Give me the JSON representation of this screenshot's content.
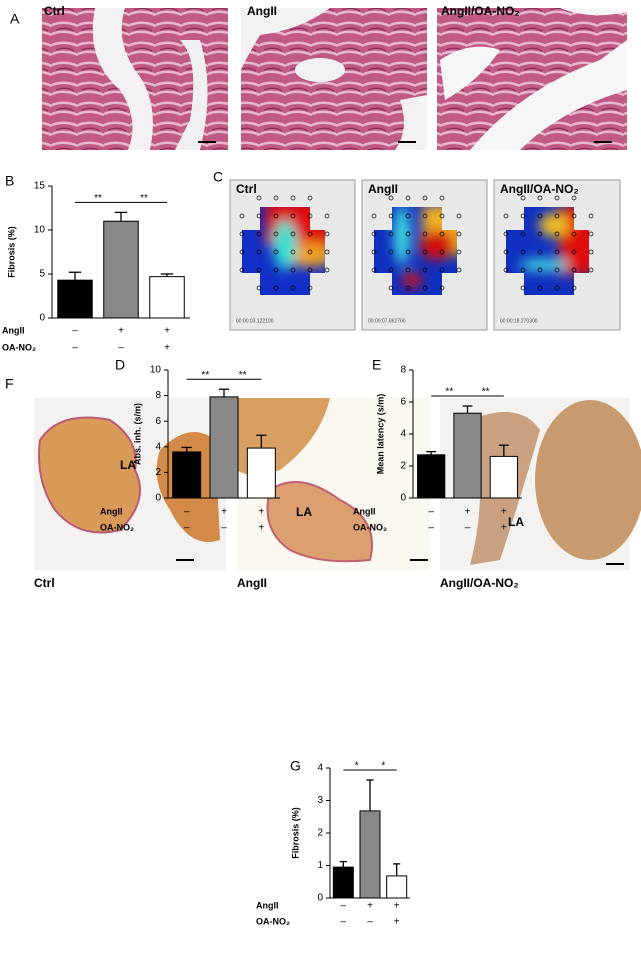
{
  "panels": {
    "a": "A",
    "b": "B",
    "c": "C",
    "d": "D",
    "e": "E",
    "f": "F",
    "g": "G"
  },
  "histology_titles": [
    "Ctrl",
    "AngII",
    "AngII/OA-NO₂"
  ],
  "heatmaps": [
    {
      "title": "Ctrl",
      "time": "00:00:03.122100"
    },
    {
      "title": "AngII",
      "time": "00:00:07.862700"
    },
    {
      "title": "AngII/OA-NO₂",
      "time": "00:00:18.270300"
    }
  ],
  "atrium_captions": [
    "Ctrl",
    "AngII",
    "AngII/OA-NO₂"
  ],
  "atrium_marker": "LA",
  "chart_data": [
    {
      "type": "bar",
      "ylabel": "Fibrosis (%)",
      "values": [
        4.3,
        11.0,
        4.7
      ],
      "errors": [
        0.9,
        1.0,
        0.3
      ],
      "colors": [
        "#000000",
        "#888888",
        "#ffffff"
      ],
      "ylim": [
        0,
        15
      ],
      "yticks": [
        0,
        5,
        10,
        15
      ],
      "conditions": [
        {
          "name": "AngII",
          "signs": [
            "–",
            "+",
            "+"
          ]
        },
        {
          "name": "OA-NO₂",
          "signs": [
            "–",
            "–",
            "+"
          ]
        }
      ],
      "significance": [
        {
          "from": 0,
          "to": 1,
          "label": "**"
        },
        {
          "from": 1,
          "to": 2,
          "label": "**"
        }
      ]
    },
    {
      "type": "bar",
      "ylabel": "Abs. inh. (s/m)",
      "values": [
        3.6,
        7.9,
        3.9
      ],
      "errors": [
        0.35,
        0.6,
        1.0
      ],
      "colors": [
        "#000000",
        "#888888",
        "#ffffff"
      ],
      "ylim": [
        0,
        10
      ],
      "yticks": [
        0,
        2,
        4,
        6,
        8,
        10
      ],
      "conditions": [
        {
          "name": "AngII",
          "signs": [
            "–",
            "+",
            "+"
          ]
        },
        {
          "name": "OA-NO₂",
          "signs": [
            "–",
            "–",
            "+"
          ]
        }
      ],
      "significance": [
        {
          "from": 0,
          "to": 1,
          "label": "**"
        },
        {
          "from": 1,
          "to": 2,
          "label": "**"
        }
      ]
    },
    {
      "type": "bar",
      "ylabel": "Mean latency (s/m)",
      "values": [
        2.7,
        5.3,
        2.6
      ],
      "errors": [
        0.2,
        0.45,
        0.7
      ],
      "colors": [
        "#000000",
        "#888888",
        "#ffffff"
      ],
      "ylim": [
        0,
        8
      ],
      "yticks": [
        0,
        2,
        4,
        6,
        8
      ],
      "conditions": [
        {
          "name": "AngII",
          "signs": [
            "–",
            "+",
            "+"
          ]
        },
        {
          "name": "OA-NO₂",
          "signs": [
            "–",
            "–",
            "+"
          ]
        }
      ],
      "significance": [
        {
          "from": 0,
          "to": 1,
          "label": "**"
        },
        {
          "from": 1,
          "to": 2,
          "label": "**"
        }
      ]
    },
    {
      "type": "bar",
      "ylabel": "Fibrosis (%)",
      "values": [
        0.95,
        2.68,
        0.68
      ],
      "errors": [
        0.17,
        0.95,
        0.37
      ],
      "colors": [
        "#000000",
        "#888888",
        "#ffffff"
      ],
      "ylim": [
        0,
        4
      ],
      "yticks": [
        0,
        1,
        2,
        3,
        4
      ],
      "conditions": [
        {
          "name": "AngII",
          "signs": [
            "–",
            "+",
            "+"
          ]
        },
        {
          "name": "OA-NO₂",
          "signs": [
            "–",
            "–",
            "+"
          ]
        }
      ],
      "significance": [
        {
          "from": 0,
          "to": 1,
          "label": "*"
        },
        {
          "from": 1,
          "to": 2,
          "label": "*"
        }
      ]
    }
  ]
}
